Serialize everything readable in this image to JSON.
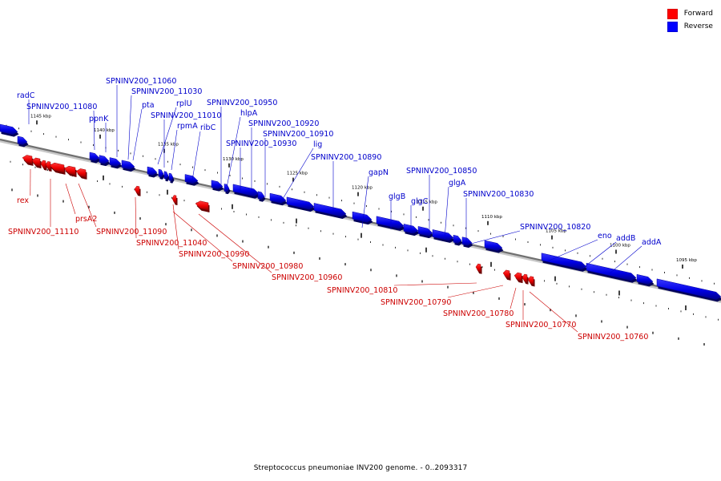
{
  "legend": {
    "forward_label": "Forward",
    "reverse_label": "Reverse",
    "forward_color": "#ff0000",
    "reverse_color": "#0000ff"
  },
  "caption": "Streptococcus pneumoniae INV200 genome. - 0..2093317",
  "scale_labels": [
    "1145 kbp",
    "1140 kbp",
    "1135 kbp",
    "1130 kbp",
    "1125 kbp",
    "1120 kbp",
    "1115 kbp",
    "1110 kbp",
    "1105 kbp",
    "1100 kbp",
    "1095 kbp"
  ],
  "reverse_genes": [
    "radC",
    "SPNINV200_11080",
    "ppnK",
    "SPNINV200_11060",
    "SPNINV200_11030",
    "pta",
    "rplU",
    "SPNINV200_11010",
    "rpmA",
    "ribC",
    "SPNINV200_10950",
    "hlpA",
    "SPNINV200_10920",
    "SPNINV200_10910",
    "SPNINV200_10930",
    "lig",
    "SPNINV200_10890",
    "gapN",
    "glgB",
    "glgC",
    "SPNINV200_10850",
    "glgA",
    "SPNINV200_10830",
    "SPNINV200_10820",
    "eno",
    "addB",
    "addA"
  ],
  "forward_genes": [
    "rex",
    "SPNINV200_11110",
    "prsA2",
    "SPNINV200_11090",
    "SPNINV200_11040",
    "SPNINV200_10990",
    "SPNINV200_10980",
    "SPNINV200_10960",
    "SPNINV200_10810",
    "SPNINV200_10790",
    "SPNINV200_10780",
    "SPNINV200_10770",
    "SPNINV200_10760"
  ]
}
